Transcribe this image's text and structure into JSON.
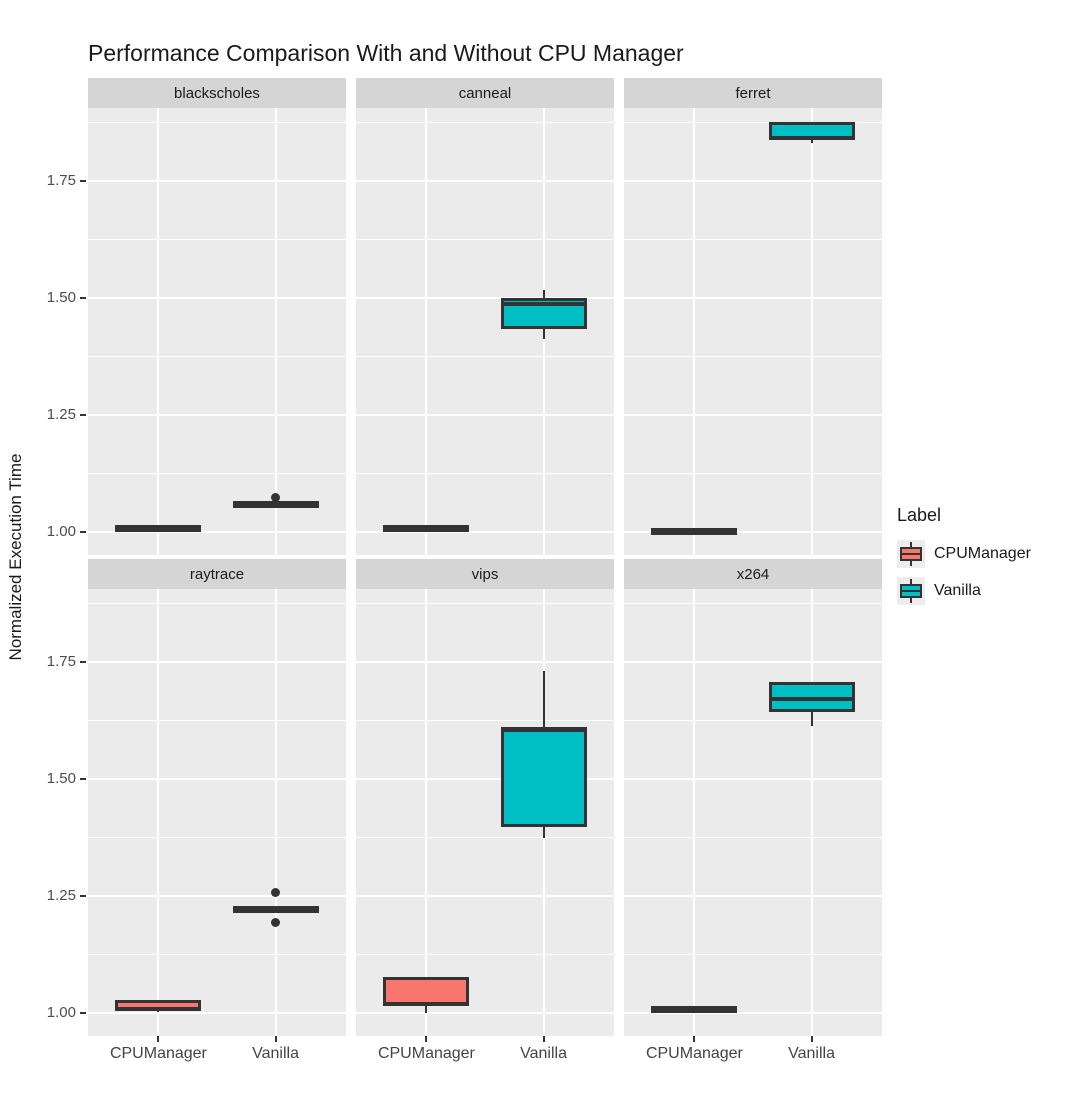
{
  "chart_data": {
    "type": "boxplot",
    "title": "Performance Comparison With and Without CPU Manager",
    "ylabel": "Normalized Execution Time",
    "x_categories": [
      "CPUManager",
      "Vanilla"
    ],
    "y_ticks": [
      {
        "label": "1.75",
        "value": 1.75
      },
      {
        "label": "1.50",
        "value": 1.5
      },
      {
        "label": "1.25",
        "value": 1.25
      },
      {
        "label": "1.00",
        "value": 1.0
      }
    ],
    "y_minor_gridlines": [
      1.875,
      1.625,
      1.375,
      1.125
    ],
    "y_range": [
      0.95,
      1.905
    ],
    "grid": true,
    "legend": {
      "title": "Label",
      "position": "right",
      "entries": [
        {
          "label": "CPUManager",
          "color": "#F8766D"
        },
        {
          "label": "Vanilla",
          "color": "#00BFC4"
        }
      ]
    },
    "facets": [
      {
        "name": "blackscholes",
        "boxes": [
          {
            "group": "CPUManager",
            "low": 1.002,
            "q1": 1.002,
            "median": 1.006,
            "q3": 1.01,
            "high": 1.01,
            "outliers": []
          },
          {
            "group": "Vanilla",
            "low": 1.052,
            "q1": 1.052,
            "median": 1.057,
            "q3": 1.062,
            "high": 1.062,
            "outliers": [
              1.072
            ]
          }
        ]
      },
      {
        "name": "canneal",
        "boxes": [
          {
            "group": "CPUManager",
            "low": 1.0,
            "q1": 1.0,
            "median": 1.005,
            "q3": 1.012,
            "high": 1.012,
            "outliers": []
          },
          {
            "group": "Vanilla",
            "low": 1.411,
            "q1": 1.432,
            "median": 1.486,
            "q3": 1.5,
            "high": 1.517,
            "outliers": []
          }
        ]
      },
      {
        "name": "ferret",
        "boxes": [
          {
            "group": "CPUManager",
            "low": 0.998,
            "q1": 0.998,
            "median": 1.001,
            "q3": 1.004,
            "high": 1.004,
            "outliers": []
          },
          {
            "group": "Vanilla",
            "low": 1.83,
            "q1": 1.836,
            "median": 1.841,
            "q3": 1.876,
            "high": 1.876,
            "outliers": []
          }
        ]
      },
      {
        "name": "raytrace",
        "boxes": [
          {
            "group": "CPUManager",
            "low": 1.002,
            "q1": 1.003,
            "median": 1.007,
            "q3": 1.026,
            "high": 1.026,
            "outliers": []
          },
          {
            "group": "Vanilla",
            "low": 1.216,
            "q1": 1.216,
            "median": 1.219,
            "q3": 1.223,
            "high": 1.223,
            "outliers": [
              1.256,
              1.193
            ]
          }
        ]
      },
      {
        "name": "vips",
        "boxes": [
          {
            "group": "CPUManager",
            "low": 1.0,
            "q1": 1.016,
            "median": 1.018,
            "q3": 1.076,
            "high": 1.076,
            "outliers": []
          },
          {
            "group": "Vanilla",
            "low": 1.372,
            "q1": 1.397,
            "median": 1.603,
            "q3": 1.61,
            "high": 1.729,
            "outliers": []
          }
        ]
      },
      {
        "name": "x264",
        "boxes": [
          {
            "group": "CPUManager",
            "low": 1.003,
            "q1": 1.003,
            "median": 1.006,
            "q3": 1.01,
            "high": 1.01,
            "outliers": []
          },
          {
            "group": "Vanilla",
            "low": 1.612,
            "q1": 1.643,
            "median": 1.669,
            "q3": 1.706,
            "high": 1.706,
            "outliers": []
          }
        ]
      }
    ],
    "colors": {
      "panel_background": "#ebebeb",
      "strip_background": "#d5d5d5",
      "gridline": "#ffffff",
      "box_border": "#333333",
      "cpumanager_fill": "#F8766D",
      "vanilla_fill": "#00BFC4"
    }
  }
}
